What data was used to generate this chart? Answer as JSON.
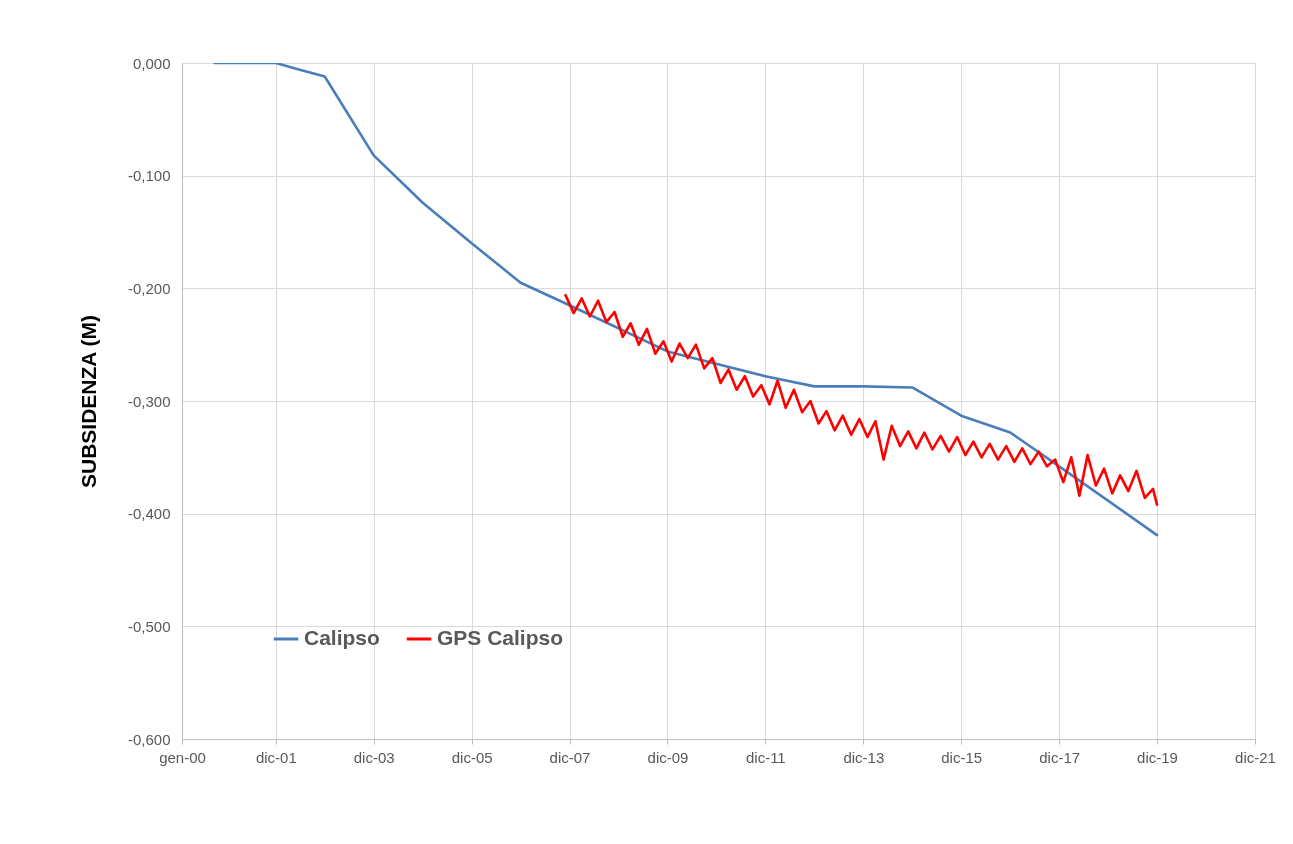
{
  "chart_data": {
    "type": "line",
    "ylabel": "SUBSIDENZA (M)",
    "grid": true,
    "legend": "bottom left",
    "xlim": [
      "2000-01",
      "2021-12"
    ],
    "xticks": [
      {
        "value": "2000-01",
        "label": "gen-00"
      },
      {
        "value": "2001-12",
        "label": "dic-01"
      },
      {
        "value": "2003-12",
        "label": "dic-03"
      },
      {
        "value": "2005-12",
        "label": "dic-05"
      },
      {
        "value": "2007-12",
        "label": "dic-07"
      },
      {
        "value": "2009-12",
        "label": "dic-09"
      },
      {
        "value": "2011-12",
        "label": "dic-11"
      },
      {
        "value": "2013-12",
        "label": "dic-13"
      },
      {
        "value": "2015-12",
        "label": "dic-15"
      },
      {
        "value": "2017-12",
        "label": "dic-17"
      },
      {
        "value": "2019-12",
        "label": "dic-19"
      },
      {
        "value": "2021-12",
        "label": "dic-21"
      }
    ],
    "ylim": [
      -0.6,
      0
    ],
    "yticks": [
      {
        "value": 0,
        "label": "0,000"
      },
      {
        "value": -0.1,
        "label": "-0,100"
      },
      {
        "value": -0.2,
        "label": "-0,200"
      },
      {
        "value": -0.3,
        "label": "-0,300"
      },
      {
        "value": -0.4,
        "label": "-0,400"
      },
      {
        "value": -0.5,
        "label": "-0,500"
      },
      {
        "value": -0.6,
        "label": "-0,600"
      }
    ],
    "series": [
      {
        "name": "Calipso",
        "color": "#4a7ebb",
        "x": [
          "2000-09",
          "2001-12",
          "2002-05",
          "2002-12",
          "2003-12",
          "2004-12",
          "2005-12",
          "2006-12",
          "2007-12",
          "2009-12",
          "2011-12",
          "2012-12",
          "2013-12",
          "2014-12",
          "2015-12",
          "2016-12",
          "2017-12",
          "2019-12"
        ],
        "values": [
          0,
          0,
          -0.005,
          -0.012,
          -0.082,
          -0.124,
          -0.16,
          -0.195,
          -0.215,
          -0.256,
          -0.278,
          -0.287,
          -0.287,
          -0.288,
          -0.313,
          -0.328,
          -0.358,
          -0.419
        ]
      },
      {
        "name": "GPS Calipso",
        "color": "#ff0000",
        "x": [
          "2007-11",
          "2008-01",
          "2008-03",
          "2008-05",
          "2008-07",
          "2008-09",
          "2008-11",
          "2009-01",
          "2009-03",
          "2009-05",
          "2009-07",
          "2009-09",
          "2009-11",
          "2010-01",
          "2010-03",
          "2010-05",
          "2010-07",
          "2010-09",
          "2010-11",
          "2011-01",
          "2011-03",
          "2011-05",
          "2011-07",
          "2011-09",
          "2011-11",
          "2012-01",
          "2012-03",
          "2012-05",
          "2012-07",
          "2012-09",
          "2012-11",
          "2013-01",
          "2013-03",
          "2013-05",
          "2013-07",
          "2013-09",
          "2013-11",
          "2014-01",
          "2014-03",
          "2014-05",
          "2014-07",
          "2014-09",
          "2014-11",
          "2015-01",
          "2015-03",
          "2015-05",
          "2015-07",
          "2015-09",
          "2015-11",
          "2016-01",
          "2016-03",
          "2016-05",
          "2016-07",
          "2016-09",
          "2016-11",
          "2017-01",
          "2017-03",
          "2017-05",
          "2017-07",
          "2017-09",
          "2017-11",
          "2018-01",
          "2018-03",
          "2018-05",
          "2018-07",
          "2018-09",
          "2018-11",
          "2019-01",
          "2019-03",
          "2019-05",
          "2019-07",
          "2019-09",
          "2019-11",
          "2019-12"
        ],
        "values": [
          -0.206,
          -0.222,
          -0.209,
          -0.225,
          -0.211,
          -0.23,
          -0.221,
          -0.243,
          -0.231,
          -0.25,
          -0.236,
          -0.258,
          -0.247,
          -0.265,
          -0.249,
          -0.262,
          -0.25,
          -0.271,
          -0.262,
          -0.284,
          -0.272,
          -0.29,
          -0.278,
          -0.296,
          -0.286,
          -0.303,
          -0.282,
          -0.306,
          -0.29,
          -0.31,
          -0.3,
          -0.32,
          -0.309,
          -0.326,
          -0.313,
          -0.33,
          -0.316,
          -0.332,
          -0.318,
          -0.352,
          -0.322,
          -0.34,
          -0.327,
          -0.342,
          -0.328,
          -0.343,
          -0.331,
          -0.345,
          -0.332,
          -0.348,
          -0.336,
          -0.35,
          -0.338,
          -0.352,
          -0.34,
          -0.354,
          -0.342,
          -0.356,
          -0.345,
          -0.358,
          -0.352,
          -0.372,
          -0.35,
          -0.384,
          -0.348,
          -0.375,
          -0.36,
          -0.382,
          -0.366,
          -0.38,
          -0.362,
          -0.386,
          -0.378,
          -0.392
        ]
      }
    ]
  }
}
